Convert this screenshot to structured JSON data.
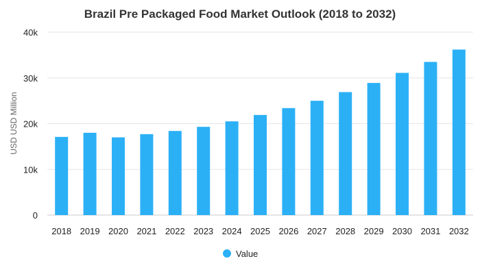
{
  "chart_data": {
    "type": "bar",
    "title": "Brazil Pre Packaged Food Market Outlook (2018 to 2032)",
    "xlabel": "",
    "ylabel": "USD USD Million",
    "ylim": [
      0,
      40000
    ],
    "yticks": [
      {
        "value": 0,
        "label": "0"
      },
      {
        "value": 10000,
        "label": "10k"
      },
      {
        "value": 20000,
        "label": "20k"
      },
      {
        "value": 30000,
        "label": "30k"
      },
      {
        "value": 40000,
        "label": "40k"
      }
    ],
    "categories": [
      "2018",
      "2019",
      "2020",
      "2021",
      "2022",
      "2023",
      "2024",
      "2025",
      "2026",
      "2027",
      "2028",
      "2029",
      "2030",
      "2031",
      "2032"
    ],
    "series": [
      {
        "name": "Value",
        "color": "#2bb0f6",
        "values": [
          17100,
          18000,
          17000,
          17700,
          18400,
          19300,
          20500,
          21900,
          23400,
          25000,
          26900,
          28900,
          31100,
          33500,
          36200
        ]
      }
    ],
    "grid": true,
    "legend_position": "bottom-center"
  }
}
